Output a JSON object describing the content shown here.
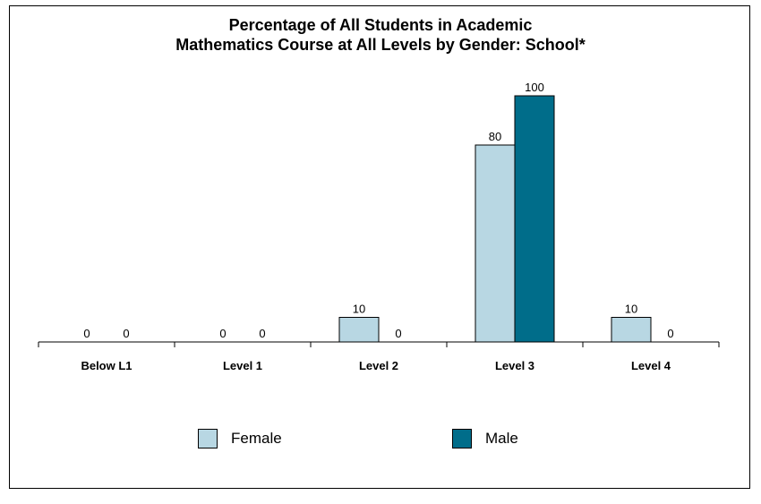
{
  "chart_data": {
    "type": "bar",
    "title_lines": [
      "Percentage of All Students in Academic",
      "Mathematics Course at All Levels by Gender: School*"
    ],
    "categories": [
      "Below L1",
      "Level 1",
      "Level 2",
      "Level 3",
      "Level 4"
    ],
    "series": [
      {
        "name": "Female",
        "values": [
          0,
          0,
          10,
          80,
          10
        ],
        "color": "#b8d7e3"
      },
      {
        "name": "Male",
        "values": [
          0,
          0,
          0,
          100,
          0
        ],
        "color": "#006d8a"
      }
    ],
    "ylim": [
      0,
      100
    ],
    "grid": false,
    "legend_position": "bottom"
  }
}
